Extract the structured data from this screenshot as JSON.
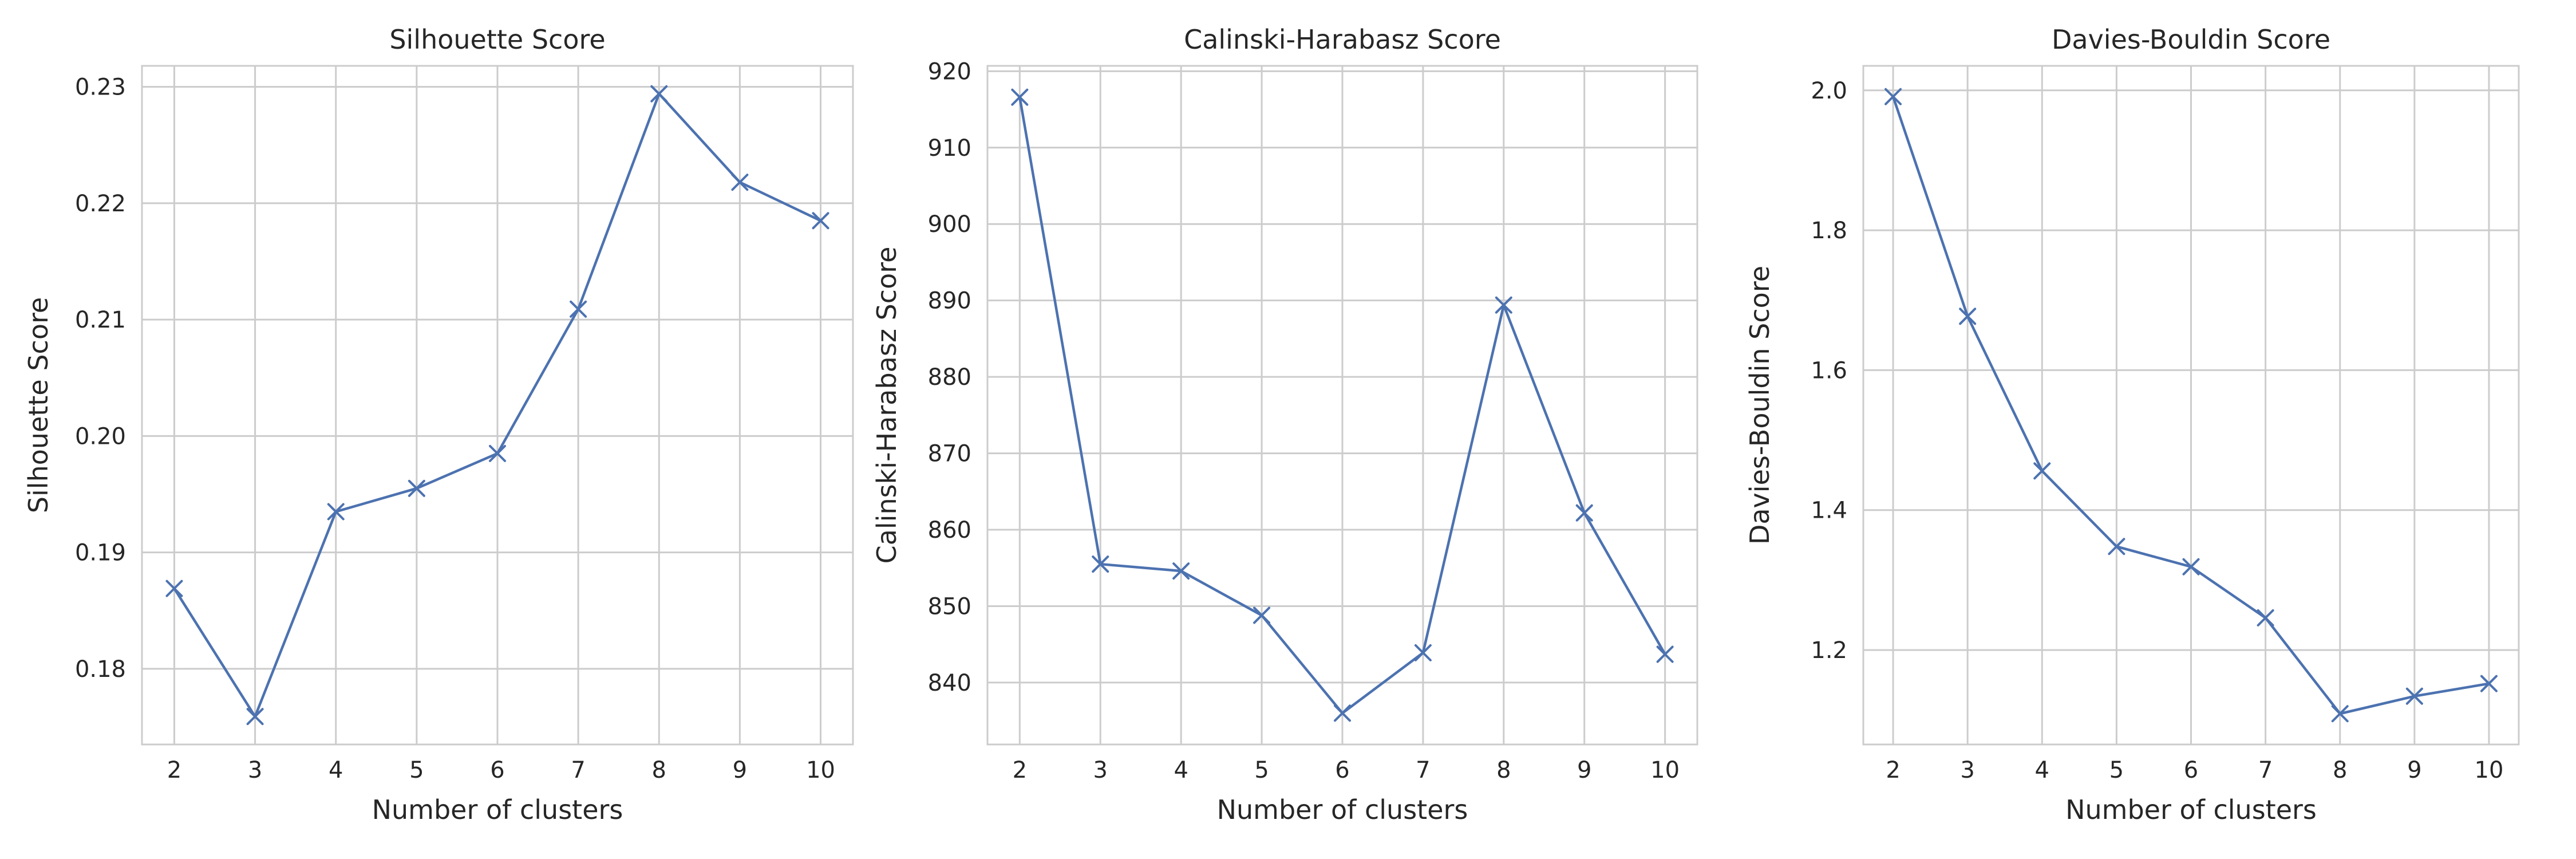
{
  "colors": {
    "series": "#4c72b0",
    "grid": "#cccccc",
    "text": "#262626"
  },
  "chart_data": [
    {
      "type": "line",
      "title": "Silhouette Score",
      "xlabel": "Number of clusters",
      "ylabel": "Silhouette Score",
      "x": [
        2,
        3,
        4,
        5,
        6,
        7,
        8,
        9,
        10
      ],
      "y": [
        0.1869,
        0.1759,
        0.1935,
        0.1955,
        0.1985,
        0.2109,
        0.2294,
        0.2218,
        0.2185
      ],
      "xlim": [
        1.6,
        10.4
      ],
      "ylim": [
        0.1735,
        0.2318
      ],
      "xticks": [
        "2",
        "3",
        "4",
        "5",
        "6",
        "7",
        "8",
        "9",
        "10"
      ],
      "yticks": [
        0.18,
        0.19,
        0.2,
        0.21,
        0.22,
        0.23
      ],
      "ytick_labels": [
        "0.18",
        "0.19",
        "0.20",
        "0.21",
        "0.22",
        "0.23"
      ],
      "marker": "x",
      "grid": true
    },
    {
      "type": "line",
      "title": "Calinski-Harabasz Score",
      "xlabel": "Number of clusters",
      "ylabel": "Calinski-Harabasz Score",
      "x": [
        2,
        3,
        4,
        5,
        6,
        7,
        8,
        9,
        10
      ],
      "y": [
        916.6,
        855.5,
        854.6,
        848.8,
        836.0,
        843.9,
        889.4,
        862.2,
        843.7
      ],
      "xlim": [
        1.6,
        10.4
      ],
      "ylim": [
        831.9,
        920.7
      ],
      "xticks": [
        "2",
        "3",
        "4",
        "5",
        "6",
        "7",
        "8",
        "9",
        "10"
      ],
      "yticks": [
        840,
        850,
        860,
        870,
        880,
        890,
        900,
        910,
        920
      ],
      "ytick_labels": [
        "840",
        "850",
        "860",
        "870",
        "880",
        "890",
        "900",
        "910",
        "920"
      ],
      "marker": "x",
      "grid": true
    },
    {
      "type": "line",
      "title": "Davies-Bouldin Score",
      "xlabel": "Number of clusters",
      "ylabel": "Davies-Bouldin Score",
      "x": [
        2,
        3,
        4,
        5,
        6,
        7,
        8,
        9,
        10
      ],
      "y": [
        1.991,
        1.677,
        1.456,
        1.348,
        1.319,
        1.246,
        1.109,
        1.134,
        1.152
      ],
      "xlim": [
        1.6,
        10.4
      ],
      "ylim": [
        1.065,
        2.035
      ],
      "xticks": [
        "2",
        "3",
        "4",
        "5",
        "6",
        "7",
        "8",
        "9",
        "10"
      ],
      "yticks": [
        1.2,
        1.4,
        1.6,
        1.8,
        2.0
      ],
      "ytick_labels": [
        "1.2",
        "1.4",
        "1.6",
        "1.8",
        "2.0"
      ],
      "marker": "x",
      "grid": true
    }
  ]
}
